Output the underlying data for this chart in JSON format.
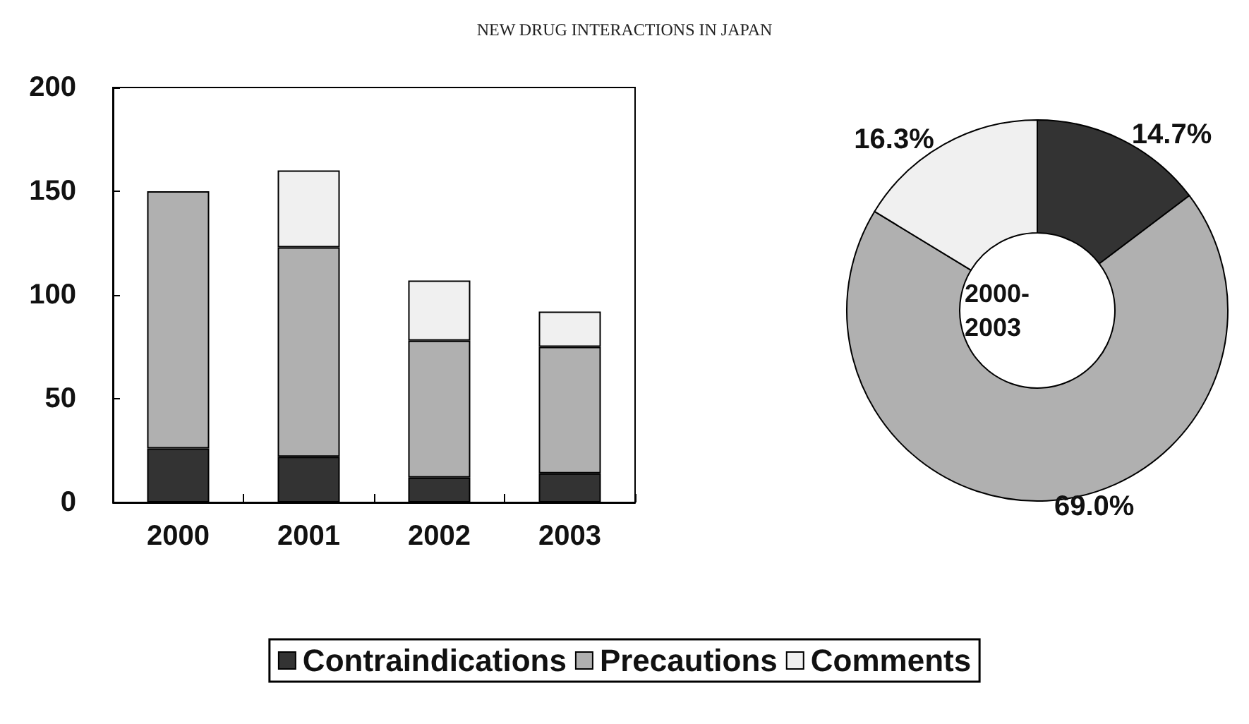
{
  "chart_data": [
    {
      "type": "bar",
      "title": "NEW DRUG INTERACTIONS IN JAPAN",
      "categories": [
        "2000",
        "2001",
        "2002",
        "2003"
      ],
      "stacked": true,
      "series": [
        {
          "name": "Contraindications",
          "color": "#333333",
          "values": [
            26,
            22,
            12,
            14
          ]
        },
        {
          "name": "Precautions",
          "color": "#b0b0b0",
          "values": [
            124,
            101,
            66,
            61
          ]
        },
        {
          "name": "Comments",
          "color": "#f0f0f0",
          "values": [
            null,
            37,
            29,
            17
          ]
        }
      ],
      "ylim": [
        0,
        200
      ],
      "yticks": [
        0,
        50,
        100,
        150,
        200
      ],
      "grid": false,
      "legend": "bottom"
    },
    {
      "type": "donut",
      "categories": [
        null,
        null,
        null
      ],
      "values": [
        14.7,
        69.0,
        16.3
      ],
      "colors": [
        "#333333",
        "#b0b0b0",
        "#f0f0f0"
      ],
      "value_labels": [
        "14.7%",
        "69.0%",
        "16.3%"
      ],
      "annotations": [
        "2000-\n2003"
      ]
    }
  ]
}
